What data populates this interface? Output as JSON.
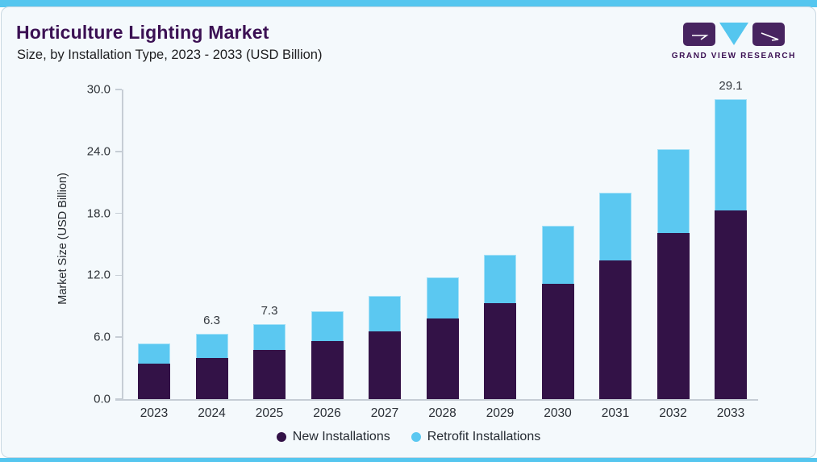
{
  "header": {
    "title": "Horticulture Lighting Market",
    "subtitle": "Size, by Installation Type, 2023 - 2033 (USD Billion)",
    "logo_text": "GRAND VIEW RESEARCH"
  },
  "colors": {
    "accent_blue": "#55C6EF",
    "new_installations": "#331247",
    "retrofit_installations": "#5BC8F1",
    "title_purple": "#3B1053",
    "logo_purple": "#472460",
    "card_bg": "#F4F9FC",
    "card_border": "#C9D8E2",
    "axis_line": "#C6CDD5",
    "text_dark": "#2A2F36"
  },
  "chart_data": {
    "type": "bar",
    "stacked": true,
    "title": "Horticulture Lighting Market",
    "subtitle": "Size, by Installation Type, 2023 - 2033 (USD Billion)",
    "xlabel": "",
    "ylabel": "Market Size (USD Billion)",
    "ylim": [
      0,
      30
    ],
    "yticks": [
      0.0,
      6.0,
      12.0,
      18.0,
      24.0,
      30.0
    ],
    "grid": false,
    "legend_position": "bottom",
    "categories": [
      "2023",
      "2024",
      "2025",
      "2026",
      "2027",
      "2028",
      "2029",
      "2030",
      "2031",
      "2032",
      "2033"
    ],
    "series": [
      {
        "name": "New Installations",
        "color": "#331247",
        "values": [
          3.4,
          4.0,
          4.8,
          5.6,
          6.6,
          7.8,
          9.3,
          11.2,
          13.4,
          16.1,
          18.3
        ]
      },
      {
        "name": "Retrofit Installations",
        "color": "#5BC8F1",
        "values": [
          2.0,
          2.3,
          2.5,
          2.9,
          3.4,
          4.0,
          4.7,
          5.6,
          6.6,
          8.1,
          10.8
        ]
      }
    ],
    "totals": [
      5.4,
      6.3,
      7.3,
      8.5,
      10.0,
      11.8,
      14.0,
      16.8,
      20.0,
      24.2,
      29.1
    ],
    "total_labels": {
      "2024": "6.3",
      "2025": "7.3",
      "2033": "29.1"
    }
  }
}
